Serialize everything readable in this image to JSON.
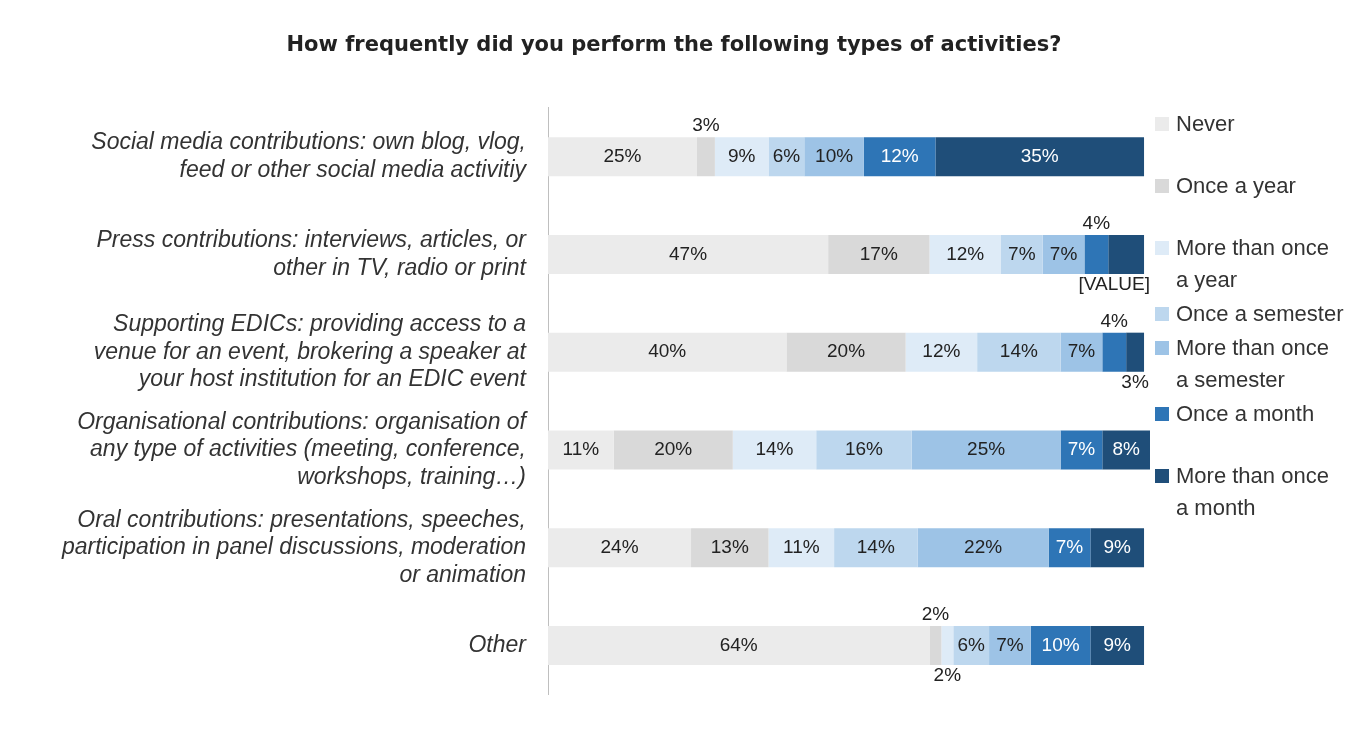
{
  "chart_data": {
    "type": "bar",
    "orientation": "horizontal",
    "stacked": true,
    "title": "How frequently did you perform the following types of activities?",
    "categories": [
      "Social media contributions: own blog, vlog, feed or other social media activitiy",
      "Press contributions: interviews, articles, or other in TV, radio or print",
      "Supporting EDICs: providing access to a venue for an event, brokering a speaker at your host institution for an EDIC event",
      "Organisational contributions: organisation of any type of activities (meeting, conference, workshops, training…)",
      "Oral contributions: presentations, speeches, participation in panel discussions, moderation or animation",
      "Other"
    ],
    "xlim": [
      0,
      101
    ],
    "tick_labels": "y",
    "legend": "right",
    "series": [
      {
        "name": "Never",
        "color": "#ebebeb",
        "values": [
          25,
          47,
          40,
          11,
          24,
          64
        ],
        "value_labels": [
          "25%",
          "47%",
          "40%",
          "11%",
          "24%",
          "64%"
        ]
      },
      {
        "name": "Once a year",
        "color": "#d9d9d9",
        "values": [
          3,
          17,
          20,
          20,
          13,
          2
        ],
        "value_labels": [
          "3%",
          "17%",
          "20%",
          "20%",
          "13%",
          "2%"
        ]
      },
      {
        "name": "More than once a year",
        "color": "#deebf7",
        "values": [
          9,
          12,
          12,
          14,
          11,
          2
        ],
        "value_labels": [
          "9%",
          "12%",
          "12%",
          "14%",
          "11%",
          "2%"
        ]
      },
      {
        "name": "Once a semester",
        "color": "#bdd7ee",
        "values": [
          6,
          7,
          14,
          16,
          14,
          6
        ],
        "value_labels": [
          "6%",
          "7%",
          "14%",
          "16%",
          "14%",
          "6%"
        ]
      },
      {
        "name": "More than once a semester",
        "color": "#9dc3e6",
        "values": [
          10,
          7,
          7,
          25,
          22,
          7
        ],
        "value_labels": [
          "10%",
          "7%",
          "7%",
          "25%",
          "22%",
          "7%"
        ]
      },
      {
        "name": "Once a month",
        "color": "#2e75b6",
        "values": [
          12,
          4,
          4,
          7,
          7,
          10
        ],
        "value_labels": [
          "12%",
          "4%",
          "4%",
          "7%",
          "7%",
          "10%"
        ]
      },
      {
        "name": "More than once a month",
        "color": "#1f4e79",
        "values": [
          35,
          6,
          3,
          8,
          9,
          9
        ],
        "value_labels": [
          "35%",
          "[VALUE]",
          "3%",
          "8%",
          "9%",
          "9%"
        ]
      }
    ]
  }
}
